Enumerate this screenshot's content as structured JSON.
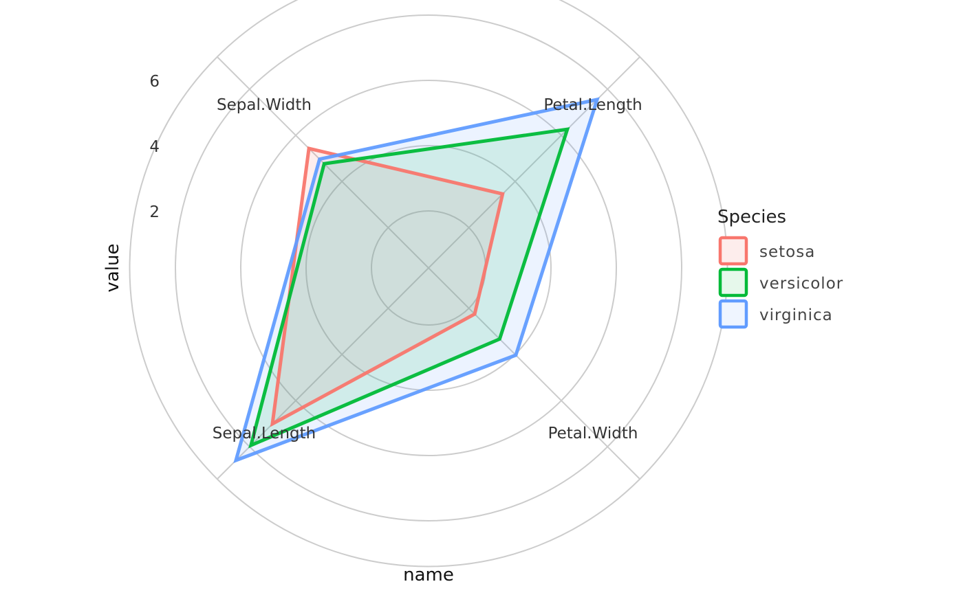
{
  "chart_data": {
    "type": "radar",
    "xlabel": "name",
    "ylabel": "value",
    "axes": [
      "Petal.Length",
      "Petal.Width",
      "Sepal.Length",
      "Sepal.Width"
    ],
    "radial_ticks": [
      2,
      4,
      6
    ],
    "radial_labels": [
      "2",
      "4",
      "6"
    ],
    "grid": true,
    "legend": {
      "title": "Species",
      "placement": "right"
    },
    "series": [
      {
        "name": "setosa",
        "color": "#F8766D",
        "fill": "#FDEDEC",
        "values": [
          1.46,
          0.25,
          5.01,
          3.43
        ]
      },
      {
        "name": "versicolor",
        "color": "#00BA38",
        "fill": "#E6F8EB",
        "values": [
          4.26,
          1.33,
          5.94,
          2.77
        ]
      },
      {
        "name": "virginica",
        "color": "#619CFF",
        "fill": "#EFF5FF",
        "values": [
          5.55,
          2.03,
          6.59,
          2.97
        ]
      }
    ]
  }
}
